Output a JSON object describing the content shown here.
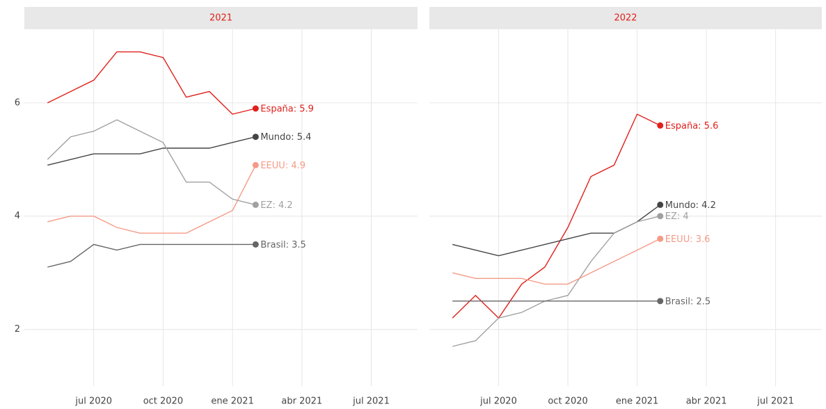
{
  "chart_data": [
    {
      "type": "line",
      "title": "2021",
      "x": [
        "2020-05",
        "2020-06",
        "2020-07",
        "2020-08",
        "2020-09",
        "2020-10",
        "2020-11",
        "2020-12",
        "2021-01",
        "2021-02"
      ],
      "xlim": [
        "2020-04",
        "2021-09"
      ],
      "xticks": [
        {
          "value": "2020-07",
          "label": "jul 2020"
        },
        {
          "value": "2020-10",
          "label": "oct 2020"
        },
        {
          "value": "2021-01",
          "label": "ene 2021"
        },
        {
          "value": "2021-04",
          "label": "abr 2021"
        },
        {
          "value": "2021-07",
          "label": "jul 2021"
        }
      ],
      "ylim": [
        1.0,
        7.3
      ],
      "yticks": [
        2,
        4,
        6
      ],
      "grid": true,
      "series": [
        {
          "name": "España",
          "label": "España: 5.9",
          "color": "#e0201b",
          "values": [
            6.0,
            6.2,
            6.4,
            6.9,
            6.9,
            6.8,
            6.1,
            6.2,
            5.8,
            5.9
          ]
        },
        {
          "name": "Mundo",
          "label": "Mundo: 5.4",
          "color": "#444444",
          "values": [
            4.9,
            5.0,
            5.1,
            5.1,
            5.1,
            5.2,
            5.2,
            5.2,
            5.3,
            5.4
          ]
        },
        {
          "name": "EEUU",
          "label": "EEUU: 4.9",
          "color": "#f59a86",
          "values": [
            3.9,
            4.0,
            4.0,
            3.8,
            3.7,
            3.7,
            3.7,
            3.9,
            4.1,
            4.9
          ]
        },
        {
          "name": "EZ",
          "label": "EZ: 4.2",
          "color": "#a0a0a0",
          "values": [
            5.0,
            5.4,
            5.5,
            5.7,
            5.5,
            5.3,
            4.6,
            4.6,
            4.3,
            4.2
          ]
        },
        {
          "name": "Brasil",
          "label": "Brasil: 3.5",
          "color": "#666666",
          "values": [
            3.1,
            3.2,
            3.5,
            3.4,
            3.5,
            3.5,
            3.5,
            3.5,
            3.5,
            3.5
          ]
        }
      ]
    },
    {
      "type": "line",
      "title": "2022",
      "x": [
        "2020-05",
        "2020-06",
        "2020-07",
        "2020-08",
        "2020-09",
        "2020-10",
        "2020-11",
        "2020-12",
        "2021-01",
        "2021-02"
      ],
      "xlim": [
        "2020-04",
        "2021-09"
      ],
      "xticks": [
        {
          "value": "2020-07",
          "label": "jul 2020"
        },
        {
          "value": "2020-10",
          "label": "oct 2020"
        },
        {
          "value": "2021-01",
          "label": "ene 2021"
        },
        {
          "value": "2021-04",
          "label": "abr 2021"
        },
        {
          "value": "2021-07",
          "label": "jul 2021"
        }
      ],
      "ylim": [
        1.0,
        7.3
      ],
      "yticks": [
        2,
        4,
        6
      ],
      "grid": true,
      "series": [
        {
          "name": "España",
          "label": "España: 5.6",
          "color": "#e0201b",
          "values": [
            2.2,
            2.6,
            2.2,
            2.8,
            3.1,
            3.8,
            4.7,
            4.9,
            5.8,
            5.6
          ]
        },
        {
          "name": "Mundo",
          "label": "Mundo: 4.2",
          "color": "#444444",
          "values": [
            3.5,
            3.4,
            3.3,
            3.4,
            3.5,
            3.6,
            3.7,
            3.7,
            3.9,
            4.2
          ]
        },
        {
          "name": "EZ",
          "label": "EZ: 4",
          "color": "#a0a0a0",
          "values": [
            1.7,
            1.8,
            2.2,
            2.3,
            2.5,
            2.6,
            3.2,
            3.7,
            3.9,
            4.0
          ]
        },
        {
          "name": "EEUU",
          "label": "EEUU: 3.6",
          "color": "#f59a86",
          "values": [
            3.0,
            2.9,
            2.9,
            2.9,
            2.8,
            2.8,
            3.0,
            3.2,
            3.4,
            3.6
          ]
        },
        {
          "name": "Brasil",
          "label": "Brasil: 2.5",
          "color": "#666666",
          "values": [
            2.5,
            2.5,
            2.5,
            2.5,
            2.5,
            2.5,
            2.5,
            2.5,
            2.5,
            2.5
          ]
        }
      ]
    }
  ]
}
